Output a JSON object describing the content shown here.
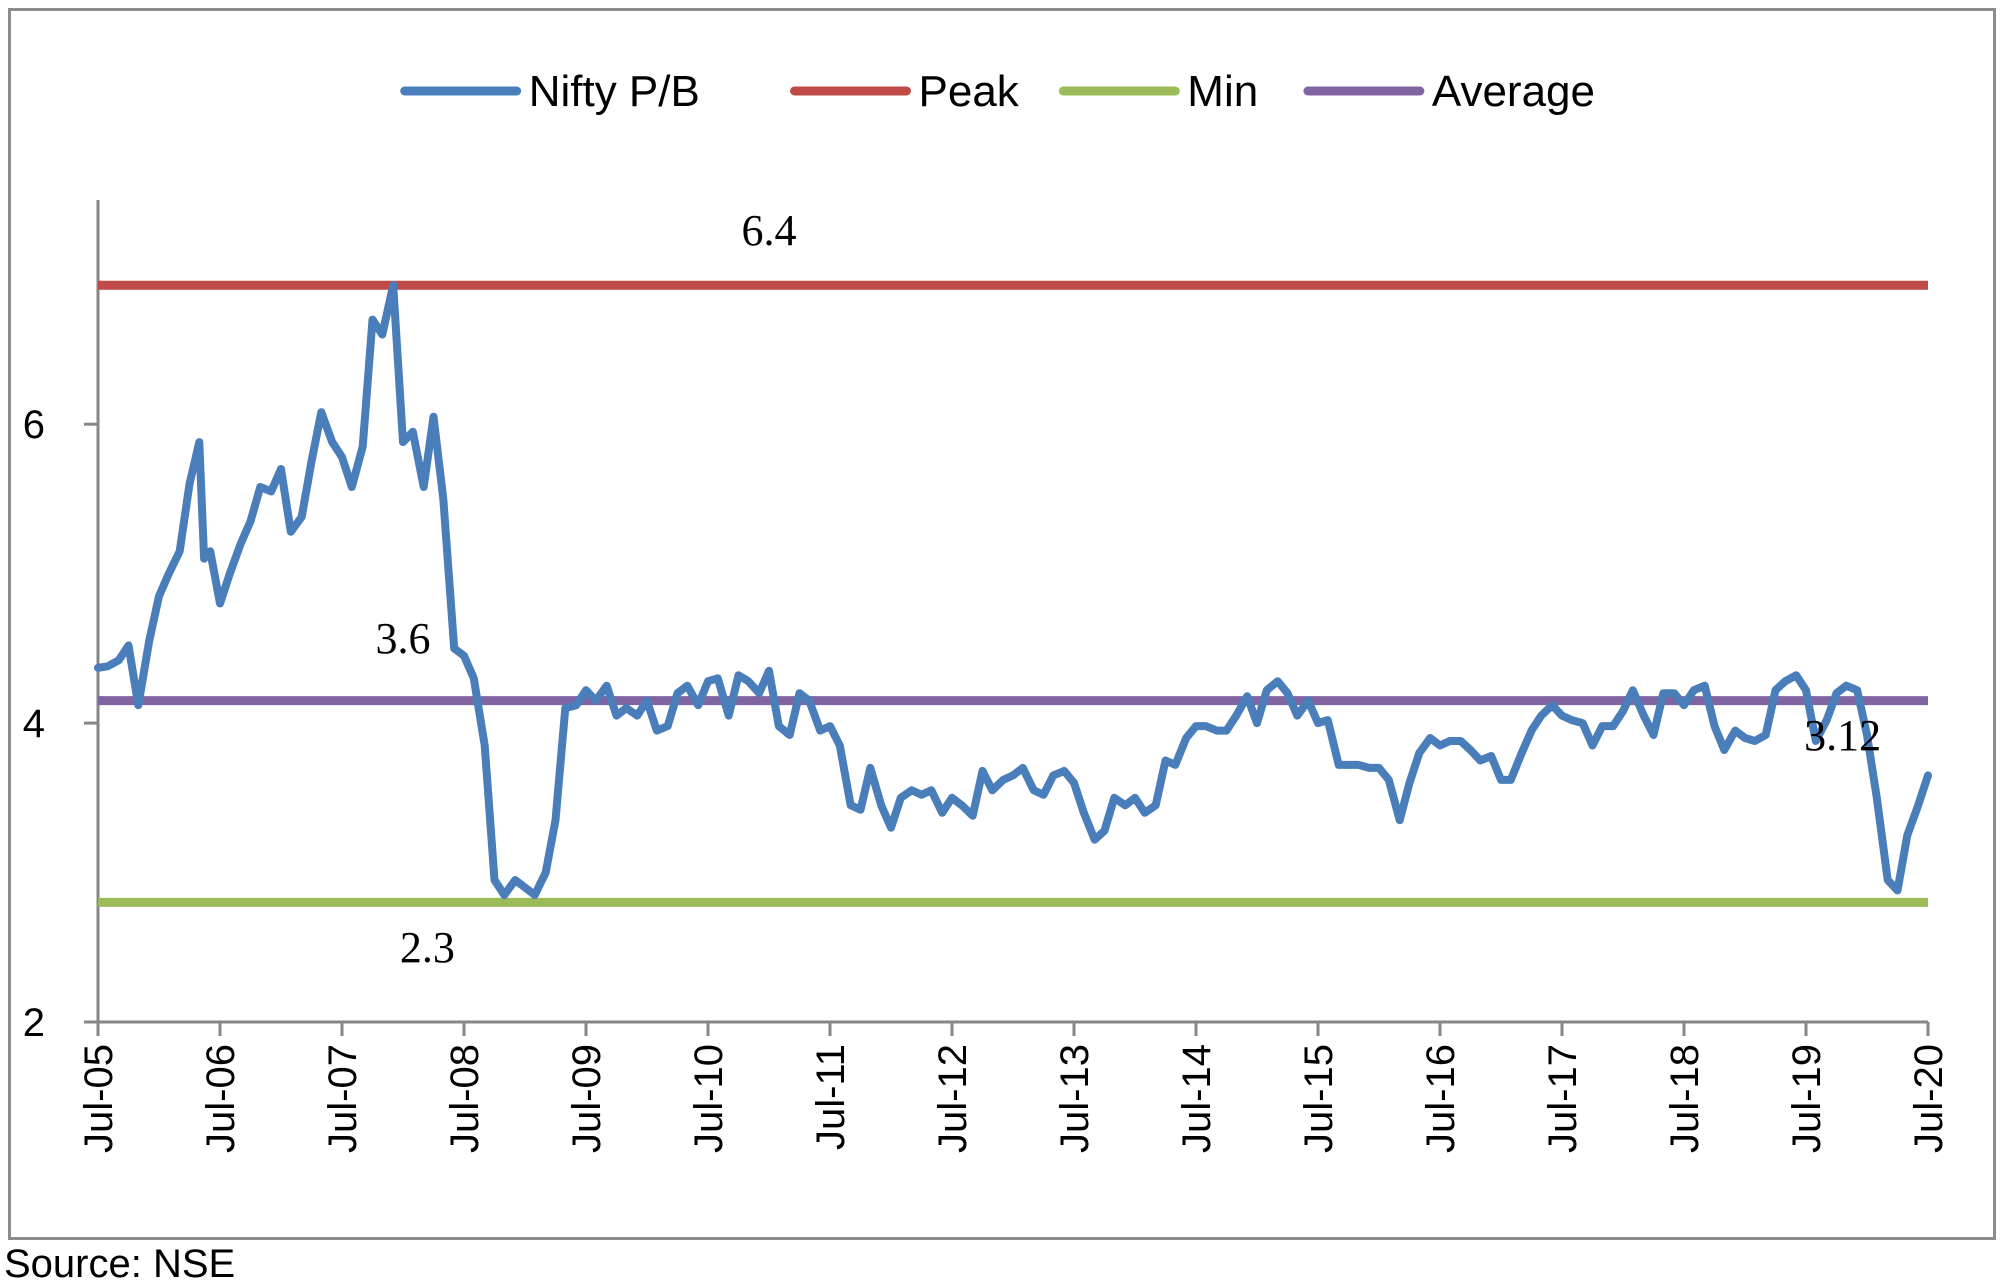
{
  "chart_data": {
    "type": "line",
    "x_ticks": [
      "Jul-05",
      "Jul-06",
      "Jul-07",
      "Jul-08",
      "Jul-09",
      "Jul-10",
      "Jul-11",
      "Jul-12",
      "Jul-13",
      "Jul-14",
      "Jul-15",
      "Jul-16",
      "Jul-17",
      "Jul-18",
      "Jul-19",
      "Jul-20"
    ],
    "y_ticks": [
      "2",
      "4",
      "6"
    ],
    "ylim": [
      2,
      7.5
    ],
    "xlim": [
      2005.5,
      2020.5
    ],
    "grid": false,
    "legend_position": "top",
    "series": [
      {
        "name": "Nifty P/B",
        "color": "#4a7ebb",
        "points": [
          [
            2005.5,
            4.37
          ],
          [
            2005.58,
            4.38
          ],
          [
            2005.67,
            4.42
          ],
          [
            2005.75,
            4.52
          ],
          [
            2005.83,
            4.12
          ],
          [
            2005.92,
            4.55
          ],
          [
            2006.0,
            4.85
          ],
          [
            2006.08,
            5.0
          ],
          [
            2006.17,
            5.15
          ],
          [
            2006.25,
            5.6
          ],
          [
            2006.33,
            5.88
          ],
          [
            2006.37,
            5.1
          ],
          [
            2006.42,
            5.15
          ],
          [
            2006.5,
            4.8
          ],
          [
            2006.58,
            5.0
          ],
          [
            2006.67,
            5.2
          ],
          [
            2006.75,
            5.35
          ],
          [
            2006.83,
            5.58
          ],
          [
            2006.92,
            5.55
          ],
          [
            2007.0,
            5.7
          ],
          [
            2007.08,
            5.28
          ],
          [
            2007.17,
            5.38
          ],
          [
            2007.25,
            5.75
          ],
          [
            2007.33,
            6.08
          ],
          [
            2007.42,
            5.88
          ],
          [
            2007.5,
            5.78
          ],
          [
            2007.58,
            5.58
          ],
          [
            2007.67,
            5.85
          ],
          [
            2007.75,
            6.7
          ],
          [
            2007.83,
            6.6
          ],
          [
            2007.92,
            6.93
          ],
          [
            2008.0,
            5.88
          ],
          [
            2008.08,
            5.95
          ],
          [
            2008.17,
            5.58
          ],
          [
            2008.25,
            6.05
          ],
          [
            2008.33,
            5.5
          ],
          [
            2008.42,
            4.5
          ],
          [
            2008.5,
            4.45
          ],
          [
            2008.58,
            4.3
          ],
          [
            2008.67,
            3.85
          ],
          [
            2008.75,
            2.95
          ],
          [
            2008.83,
            2.85
          ],
          [
            2008.92,
            2.95
          ],
          [
            2009.0,
            2.9
          ],
          [
            2009.08,
            2.85
          ],
          [
            2009.17,
            3.0
          ],
          [
            2009.25,
            3.35
          ],
          [
            2009.33,
            4.1
          ],
          [
            2009.42,
            4.12
          ],
          [
            2009.5,
            4.22
          ],
          [
            2009.58,
            4.15
          ],
          [
            2009.67,
            4.25
          ],
          [
            2009.75,
            4.05
          ],
          [
            2009.83,
            4.1
          ],
          [
            2009.92,
            4.05
          ],
          [
            2010.0,
            4.15
          ],
          [
            2010.08,
            3.95
          ],
          [
            2010.17,
            3.98
          ],
          [
            2010.25,
            4.2
          ],
          [
            2010.33,
            4.25
          ],
          [
            2010.42,
            4.12
          ],
          [
            2010.5,
            4.28
          ],
          [
            2010.58,
            4.3
          ],
          [
            2010.67,
            4.05
          ],
          [
            2010.75,
            4.32
          ],
          [
            2010.83,
            4.28
          ],
          [
            2010.92,
            4.2
          ],
          [
            2011.0,
            4.35
          ],
          [
            2011.08,
            3.98
          ],
          [
            2011.17,
            3.92
          ],
          [
            2011.25,
            4.2
          ],
          [
            2011.33,
            4.15
          ],
          [
            2011.42,
            3.95
          ],
          [
            2011.5,
            3.98
          ],
          [
            2011.58,
            3.85
          ],
          [
            2011.67,
            3.45
          ],
          [
            2011.75,
            3.42
          ],
          [
            2011.83,
            3.7
          ],
          [
            2011.92,
            3.45
          ],
          [
            2012.0,
            3.3
          ],
          [
            2012.08,
            3.5
          ],
          [
            2012.17,
            3.55
          ],
          [
            2012.25,
            3.52
          ],
          [
            2012.33,
            3.55
          ],
          [
            2012.42,
            3.4
          ],
          [
            2012.5,
            3.5
          ],
          [
            2012.58,
            3.45
          ],
          [
            2012.67,
            3.38
          ],
          [
            2012.75,
            3.68
          ],
          [
            2012.83,
            3.55
          ],
          [
            2012.92,
            3.62
          ],
          [
            2013.0,
            3.65
          ],
          [
            2013.08,
            3.7
          ],
          [
            2013.17,
            3.55
          ],
          [
            2013.25,
            3.52
          ],
          [
            2013.33,
            3.65
          ],
          [
            2013.42,
            3.68
          ],
          [
            2013.5,
            3.6
          ],
          [
            2013.58,
            3.4
          ],
          [
            2013.67,
            3.22
          ],
          [
            2013.75,
            3.28
          ],
          [
            2013.83,
            3.5
          ],
          [
            2013.92,
            3.45
          ],
          [
            2014.0,
            3.5
          ],
          [
            2014.08,
            3.4
          ],
          [
            2014.17,
            3.45
          ],
          [
            2014.25,
            3.75
          ],
          [
            2014.33,
            3.72
          ],
          [
            2014.42,
            3.9
          ],
          [
            2014.5,
            3.98
          ],
          [
            2014.58,
            3.98
          ],
          [
            2014.67,
            3.95
          ],
          [
            2014.75,
            3.95
          ],
          [
            2014.83,
            4.05
          ],
          [
            2014.92,
            4.18
          ],
          [
            2015.0,
            4.0
          ],
          [
            2015.08,
            4.22
          ],
          [
            2015.17,
            4.28
          ],
          [
            2015.25,
            4.2
          ],
          [
            2015.33,
            4.05
          ],
          [
            2015.42,
            4.15
          ],
          [
            2015.5,
            4.0
          ],
          [
            2015.58,
            4.02
          ],
          [
            2015.67,
            3.72
          ],
          [
            2015.75,
            3.72
          ],
          [
            2015.83,
            3.72
          ],
          [
            2015.92,
            3.7
          ],
          [
            2016.0,
            3.7
          ],
          [
            2016.08,
            3.62
          ],
          [
            2016.17,
            3.35
          ],
          [
            2016.25,
            3.6
          ],
          [
            2016.33,
            3.8
          ],
          [
            2016.42,
            3.9
          ],
          [
            2016.5,
            3.85
          ],
          [
            2016.58,
            3.88
          ],
          [
            2016.67,
            3.88
          ],
          [
            2016.75,
            3.82
          ],
          [
            2016.83,
            3.75
          ],
          [
            2016.92,
            3.78
          ],
          [
            2017.0,
            3.62
          ],
          [
            2017.08,
            3.62
          ],
          [
            2017.17,
            3.8
          ],
          [
            2017.25,
            3.95
          ],
          [
            2017.33,
            4.05
          ],
          [
            2017.42,
            4.12
          ],
          [
            2017.5,
            4.05
          ],
          [
            2017.58,
            4.02
          ],
          [
            2017.67,
            4.0
          ],
          [
            2017.75,
            3.85
          ],
          [
            2017.83,
            3.98
          ],
          [
            2017.92,
            3.98
          ],
          [
            2018.0,
            4.08
          ],
          [
            2018.08,
            4.22
          ],
          [
            2018.17,
            4.05
          ],
          [
            2018.25,
            3.92
          ],
          [
            2018.33,
            4.2
          ],
          [
            2018.42,
            4.2
          ],
          [
            2018.5,
            4.12
          ],
          [
            2018.58,
            4.22
          ],
          [
            2018.67,
            4.25
          ],
          [
            2018.75,
            3.98
          ],
          [
            2018.83,
            3.82
          ],
          [
            2018.92,
            3.95
          ],
          [
            2019.0,
            3.9
          ],
          [
            2019.08,
            3.88
          ],
          [
            2019.17,
            3.92
          ],
          [
            2019.25,
            4.22
          ],
          [
            2019.33,
            4.28
          ],
          [
            2019.42,
            4.32
          ],
          [
            2019.5,
            4.22
          ],
          [
            2019.58,
            3.88
          ],
          [
            2019.67,
            4.02
          ],
          [
            2019.75,
            4.2
          ],
          [
            2019.83,
            4.25
          ],
          [
            2019.92,
            4.22
          ],
          [
            2020.0,
            3.92
          ],
          [
            2020.08,
            3.5
          ],
          [
            2020.17,
            2.95
          ],
          [
            2020.25,
            2.88
          ],
          [
            2020.33,
            3.25
          ],
          [
            2020.42,
            3.45
          ],
          [
            2020.5,
            3.65
          ]
        ]
      },
      {
        "name": "Peak",
        "color": "#be4b48",
        "value": 6.93
      },
      {
        "name": "Min",
        "color": "#9bbb59",
        "value": 2.8
      },
      {
        "name": "Average",
        "color": "#8064a2",
        "value": 4.15
      }
    ],
    "annotations": [
      {
        "text": "6.4",
        "at": [
          2011.0,
          7.2
        ]
      },
      {
        "text": "3.6",
        "at": [
          2008.0,
          4.47
        ]
      },
      {
        "text": "2.3",
        "at": [
          2008.2,
          2.4
        ]
      },
      {
        "text": "3.12",
        "at": [
          2019.8,
          3.82
        ]
      }
    ]
  },
  "source_note": "Source: NSE"
}
